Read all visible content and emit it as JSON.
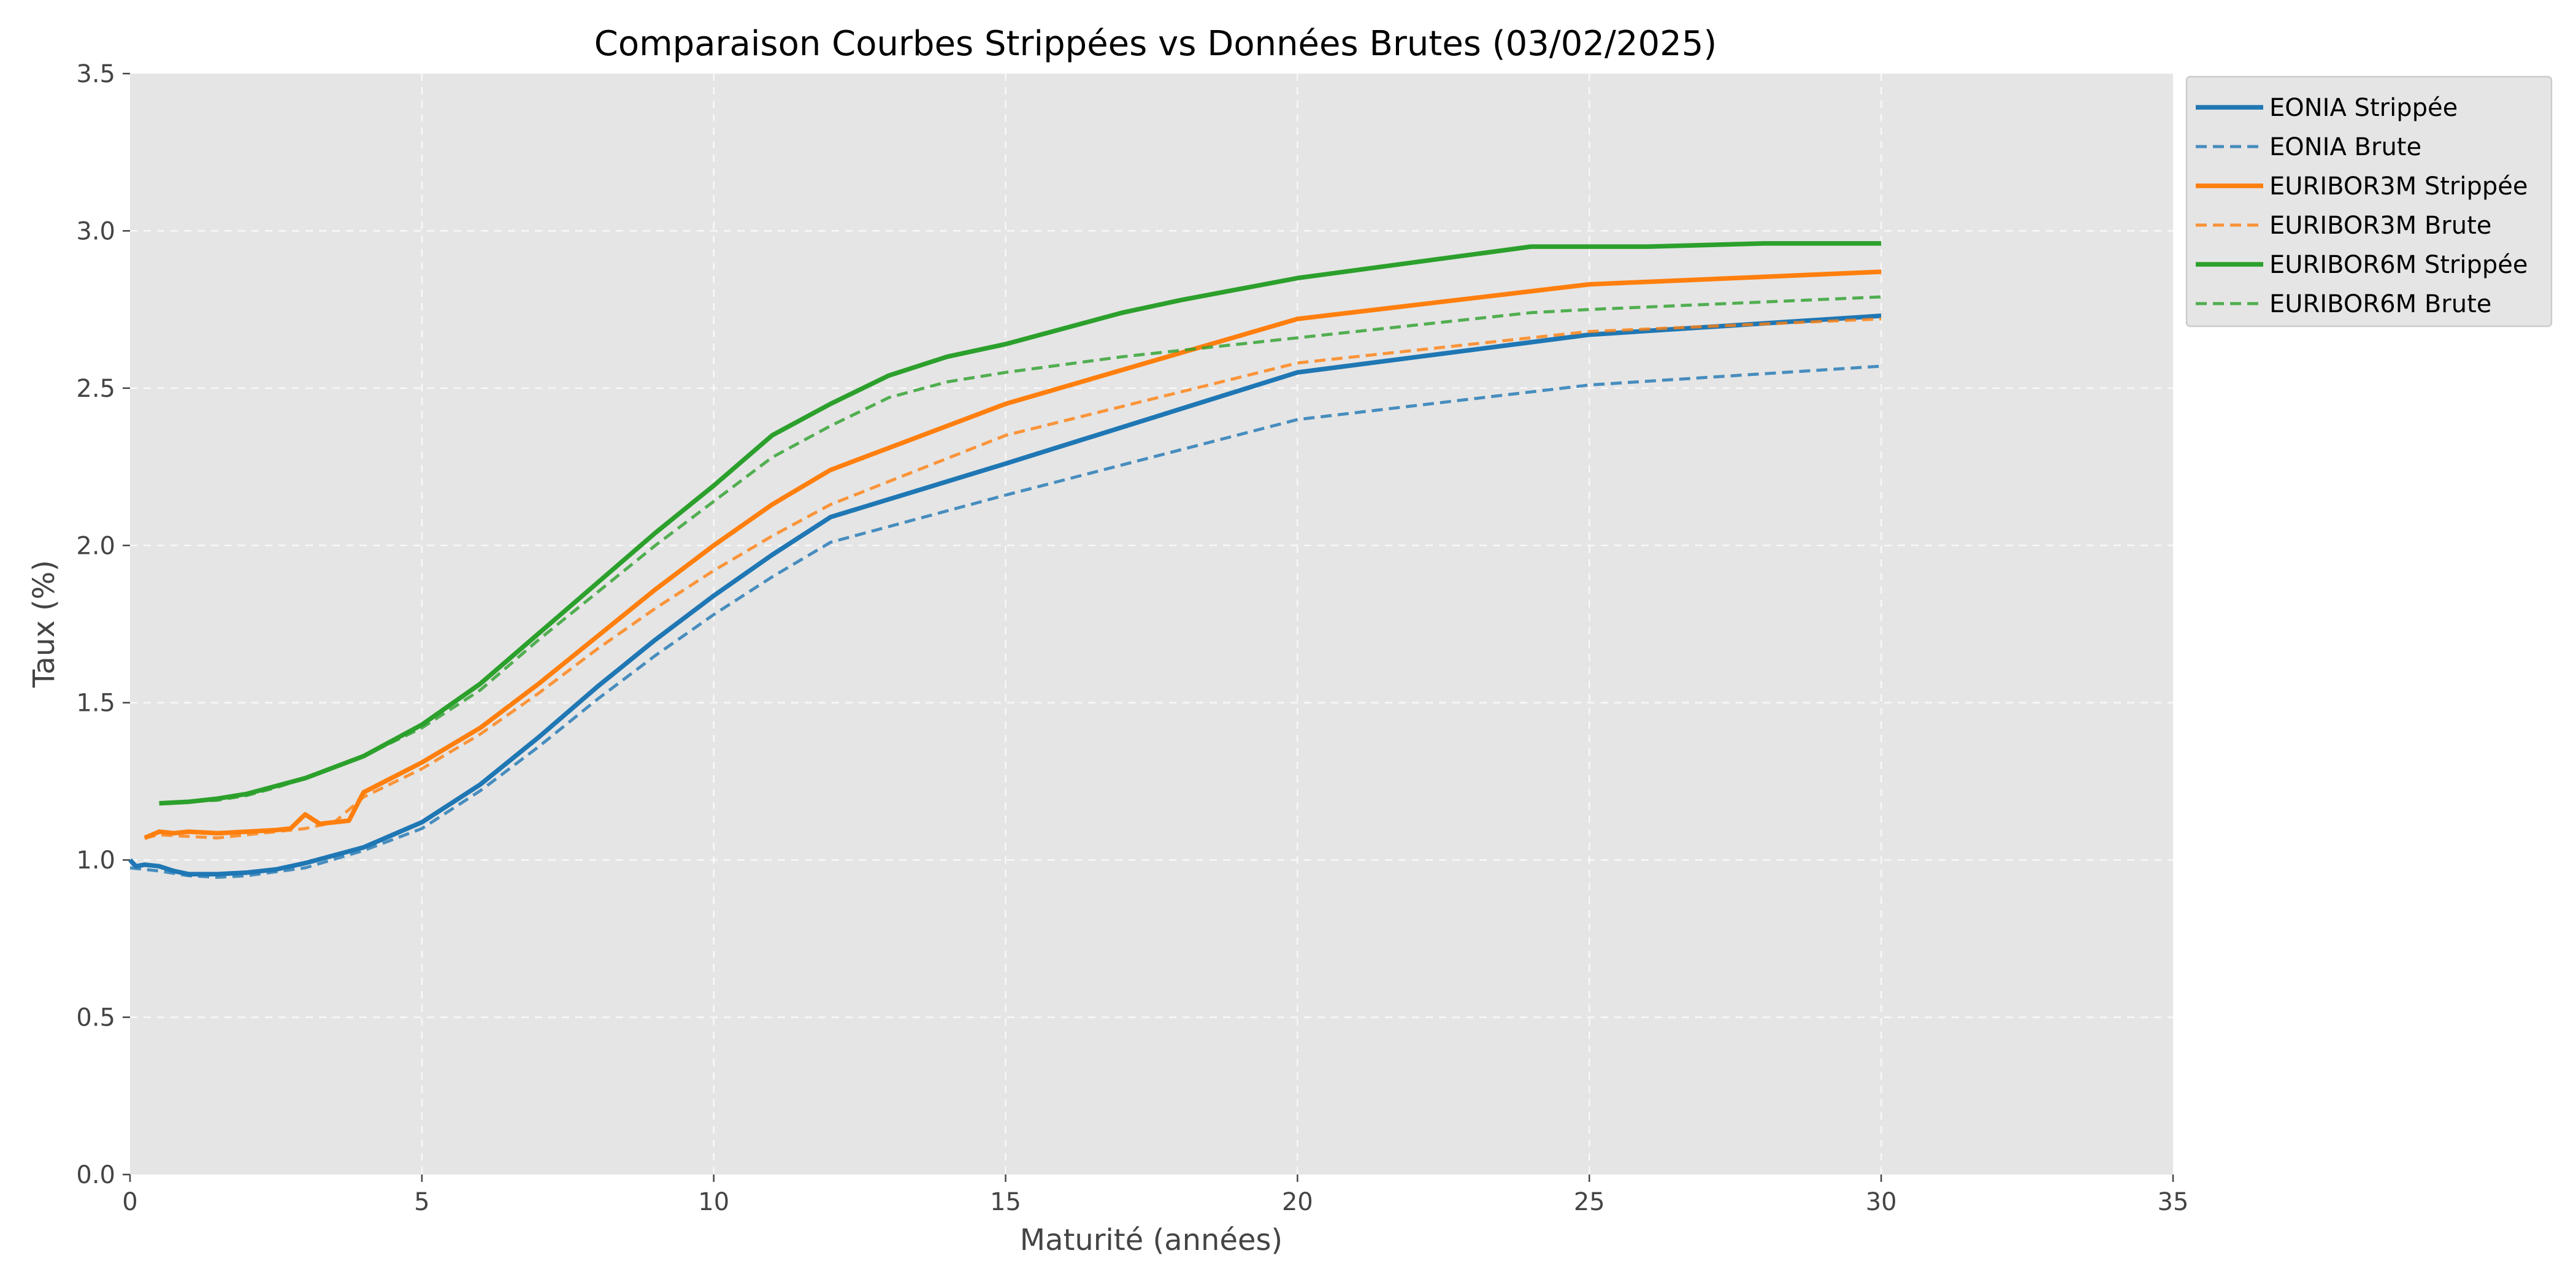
{
  "chart_data": {
    "type": "line",
    "title": "Comparaison Courbes Strippées vs Données Brutes (03/02/2025)",
    "xlabel": "Maturité (années)",
    "ylabel": "Taux (%)",
    "xlim": [
      0,
      35
    ],
    "ylim": [
      0,
      3.5
    ],
    "xticks": [
      0,
      5,
      10,
      15,
      20,
      25,
      30,
      35
    ],
    "yticks": [
      0.0,
      0.5,
      1.0,
      1.5,
      2.0,
      2.5,
      3.0,
      3.5
    ],
    "xtick_labels": [
      "0",
      "5",
      "10",
      "15",
      "20",
      "25",
      "30",
      "35"
    ],
    "ytick_labels": [
      "0.0",
      "0.5",
      "1.0",
      "1.5",
      "2.0",
      "2.5",
      "3.0",
      "3.5"
    ],
    "grid": true,
    "legend_position": "outside-top-right",
    "series": [
      {
        "name": "EONIA Strippée",
        "color": "#1f77b4",
        "style": "solid",
        "x": [
          0,
          0.1,
          0.25,
          0.5,
          0.75,
          1,
          1.25,
          1.5,
          2,
          2.5,
          3,
          4,
          5,
          6,
          7,
          8,
          9,
          10,
          11,
          12,
          15,
          20,
          25,
          30
        ],
        "y": [
          1.0,
          0.98,
          0.985,
          0.98,
          0.965,
          0.955,
          0.955,
          0.955,
          0.96,
          0.97,
          0.99,
          1.04,
          1.12,
          1.24,
          1.39,
          1.55,
          1.7,
          1.84,
          1.97,
          2.09,
          2.26,
          2.55,
          2.67,
          2.73
        ]
      },
      {
        "name": "EONIA Brute",
        "color": "#1f77b4",
        "style": "dashed",
        "x": [
          0,
          0.25,
          0.5,
          1,
          1.5,
          2,
          3,
          4,
          5,
          6,
          7,
          8,
          9,
          10,
          11,
          12,
          15,
          20,
          25,
          30
        ],
        "y": [
          0.975,
          0.97,
          0.965,
          0.95,
          0.945,
          0.95,
          0.975,
          1.03,
          1.1,
          1.22,
          1.36,
          1.51,
          1.65,
          1.78,
          1.9,
          2.01,
          2.16,
          2.4,
          2.51,
          2.57
        ]
      },
      {
        "name": "EURIBOR3M Strippée",
        "color": "#ff7f0e",
        "style": "solid",
        "x": [
          0.25,
          0.5,
          0.75,
          1,
          1.5,
          2,
          2.5,
          2.75,
          3,
          3.25,
          3.5,
          3.75,
          4,
          5,
          6,
          7,
          8,
          9,
          10,
          11,
          12,
          15,
          20,
          25,
          30
        ],
        "y": [
          1.07,
          1.09,
          1.085,
          1.09,
          1.085,
          1.09,
          1.095,
          1.1,
          1.145,
          1.115,
          1.12,
          1.125,
          1.215,
          1.31,
          1.42,
          1.56,
          1.71,
          1.86,
          2.0,
          2.13,
          2.24,
          2.45,
          2.72,
          2.83,
          2.87
        ]
      },
      {
        "name": "EURIBOR3M Brute",
        "color": "#ff7f0e",
        "style": "dashed",
        "x": [
          0.25,
          0.5,
          1,
          1.5,
          2,
          2.5,
          3,
          3.5,
          4,
          5,
          6,
          7,
          8,
          9,
          10,
          11,
          12,
          15,
          20,
          25,
          30
        ],
        "y": [
          1.07,
          1.08,
          1.075,
          1.07,
          1.08,
          1.09,
          1.1,
          1.12,
          1.2,
          1.29,
          1.4,
          1.53,
          1.67,
          1.8,
          1.92,
          2.03,
          2.13,
          2.35,
          2.58,
          2.68,
          2.72
        ]
      },
      {
        "name": "EURIBOR6M Strippée",
        "color": "#2ca02c",
        "style": "solid",
        "x": [
          0.5,
          1,
          1.5,
          2,
          2.5,
          3,
          4,
          5,
          6,
          7,
          8,
          9,
          10,
          11,
          12,
          13,
          14,
          15,
          17,
          18,
          20,
          22,
          24,
          26,
          28,
          30
        ],
        "y": [
          1.18,
          1.185,
          1.195,
          1.21,
          1.235,
          1.26,
          1.33,
          1.43,
          1.56,
          1.72,
          1.88,
          2.04,
          2.19,
          2.35,
          2.45,
          2.54,
          2.6,
          2.64,
          2.74,
          2.78,
          2.85,
          2.9,
          2.95,
          2.95,
          2.96,
          2.96
        ]
      },
      {
        "name": "EURIBOR6M Brute",
        "color": "#2ca02c",
        "style": "dashed",
        "x": [
          0.5,
          1,
          1.5,
          2,
          2.5,
          3,
          4,
          5,
          6,
          7,
          8,
          9,
          10,
          11,
          12,
          13,
          14,
          15,
          17,
          20,
          24,
          25,
          30
        ],
        "y": [
          1.18,
          1.185,
          1.19,
          1.205,
          1.23,
          1.26,
          1.33,
          1.42,
          1.54,
          1.7,
          1.85,
          2.0,
          2.14,
          2.28,
          2.38,
          2.47,
          2.52,
          2.55,
          2.6,
          2.66,
          2.74,
          2.75,
          2.79
        ]
      }
    ]
  }
}
